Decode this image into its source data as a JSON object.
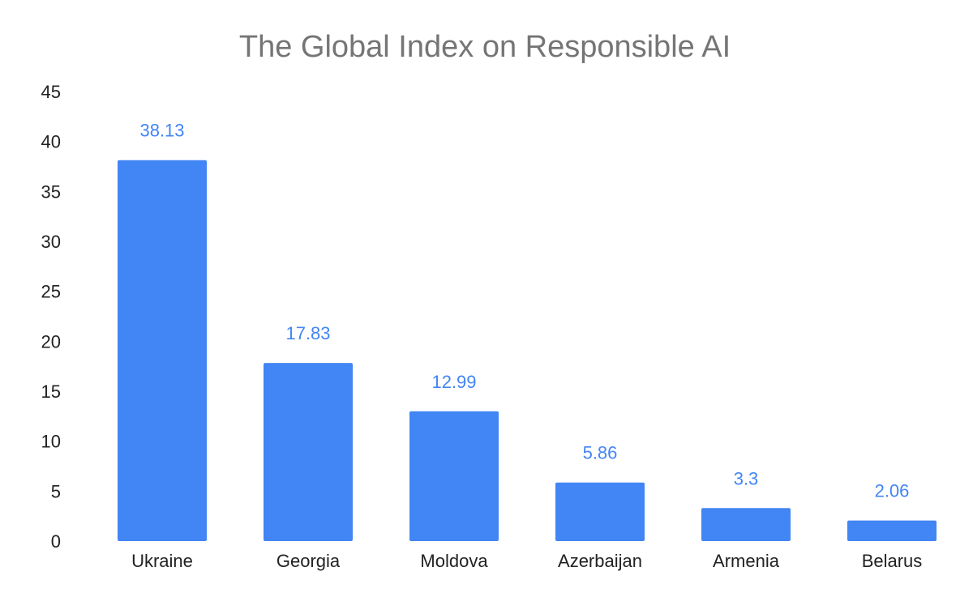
{
  "chart_data": {
    "type": "bar",
    "title": "The Global Index on Responsible AI",
    "xlabel": "",
    "ylabel": "",
    "categories": [
      "Ukraine",
      "Georgia",
      "Moldova",
      "Azerbaijan",
      "Armenia",
      "Belarus"
    ],
    "values": [
      38.13,
      17.83,
      12.99,
      5.86,
      3.3,
      2.06
    ],
    "value_labels": [
      "38.13",
      "17.83",
      "12.99",
      "5.86",
      "3.3",
      "2.06"
    ],
    "ylim": [
      0,
      45
    ],
    "yticks": [
      0,
      5,
      10,
      15,
      20,
      25,
      30,
      35,
      40,
      45
    ],
    "grid": false,
    "legend": "none",
    "bar_color": "#4285F4",
    "label_color": "#4285F4"
  }
}
